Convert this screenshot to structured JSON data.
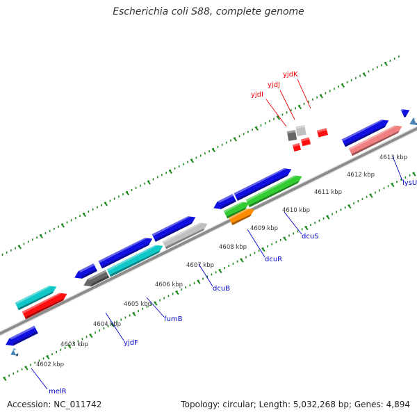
{
  "title": "Escherichia coli S88, complete genome",
  "footer": {
    "accession": "Accession: NC_011742",
    "topology": "Topology: circular; Length: 5,032,268 bp; Genes: 4,894"
  },
  "colors": {
    "backbone": "#8c8c8c",
    "tick": "#1e8a1e",
    "blue_gene": "#1010e0",
    "red_gene": "#ff1010",
    "cyan_gene": "#10c8c8",
    "gray_gene": "#666666",
    "light_gray_gene": "#c0c0c0",
    "green_gene": "#33cc33",
    "orange_gene": "#ff8c00",
    "pink_gene": "#f08080",
    "steel_gene": "#4682b4",
    "label_blue": "#0000cc",
    "label_red": "#ee0000"
  },
  "kbp_labels": [
    "4602 kbp",
    "4603 kbp",
    "4604 kbp",
    "4605 kbp",
    "4606 kbp",
    "4607 kbp",
    "4608 kbp",
    "4609 kbp",
    "4610 kbp",
    "4611 kbp",
    "4612 kbp",
    "4613 kbp"
  ],
  "gene_labels": [
    {
      "name": "melR",
      "color": "blue"
    },
    {
      "name": "yjdF",
      "color": "blue"
    },
    {
      "name": "fumB",
      "color": "blue"
    },
    {
      "name": "dcuB",
      "color": "blue"
    },
    {
      "name": "dcuR",
      "color": "blue"
    },
    {
      "name": "dcuS",
      "color": "blue"
    },
    {
      "name": "lysU",
      "color": "blue"
    },
    {
      "name": "yjdI",
      "color": "red"
    },
    {
      "name": "yjdJ",
      "color": "red"
    },
    {
      "name": "yjdK",
      "color": "red"
    }
  ]
}
